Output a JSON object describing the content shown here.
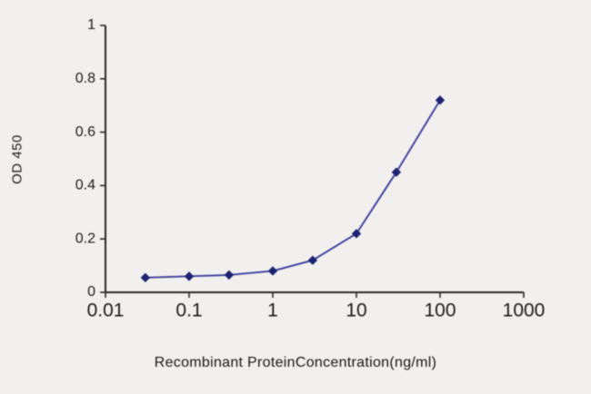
{
  "figure": {
    "kind": "ELISA standard curve plot"
  },
  "chart_data": {
    "type": "line",
    "x_scale": "log",
    "x": [
      0.03,
      0.1,
      0.3,
      1,
      3,
      10,
      30,
      100
    ],
    "y": [
      0.055,
      0.06,
      0.065,
      0.08,
      0.12,
      0.22,
      0.45,
      0.72
    ],
    "xlim": [
      0.01,
      1000
    ],
    "ylim": [
      0,
      1
    ],
    "x_ticks": [
      0.01,
      0.1,
      1,
      10,
      100,
      1000
    ],
    "x_tick_labels": [
      "0.01",
      "0.1",
      "1",
      "10",
      "100",
      "1000"
    ],
    "y_ticks": [
      0,
      0.2,
      0.4,
      0.6,
      0.8,
      1
    ],
    "y_tick_labels": [
      "0",
      "0.2",
      "0.4",
      "0.6",
      "0.8",
      "1"
    ],
    "xlabel": "Recombinant ProteinConcentration(ng/ml)",
    "ylabel": "OD 450",
    "title": "",
    "marker": "diamond",
    "grid": false,
    "legend": null,
    "colors": {
      "line": "#3d3f9d",
      "marker": "#1e2272",
      "axis": "#2a2a2a",
      "tick_text": "#1b1b1b",
      "background": "#f1f0ee"
    }
  }
}
